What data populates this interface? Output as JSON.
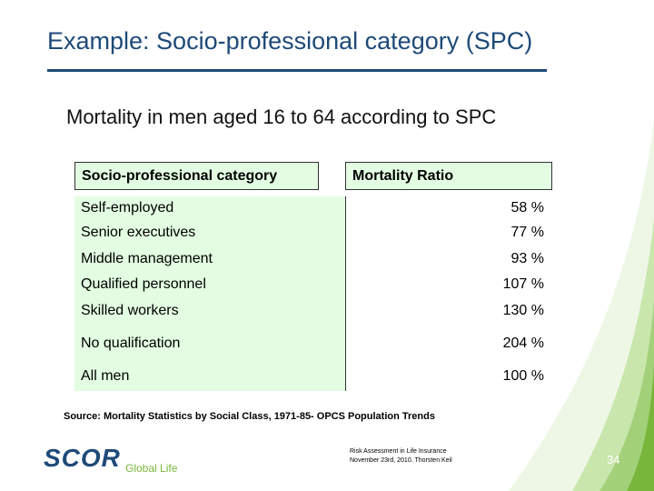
{
  "slide": {
    "title": "Example: Socio-professional category (SPC)",
    "subtitle": "Mortality in men aged 16 to 64 according to SPC"
  },
  "table": {
    "headers": [
      "Socio-professional category",
      "Mortality Ratio"
    ],
    "rows": [
      {
        "category": "Self-employed",
        "ratio": "58 %"
      },
      {
        "category": "Senior executives",
        "ratio": "77 %"
      },
      {
        "category": "Middle management",
        "ratio": "93 %"
      },
      {
        "category": "Qualified personnel",
        "ratio": "107 %"
      },
      {
        "category": "Skilled workers",
        "ratio": "130 %"
      },
      {
        "category": "No qualification",
        "ratio": "204 %"
      },
      {
        "category": "All men",
        "ratio": "100 %"
      }
    ],
    "colors": {
      "header_fill": "#e2fde2",
      "category_fill": "#e2fde2"
    }
  },
  "source": "Source: Mortality Statistics by Social Class, 1971-85- OPCS Population Trends",
  "footer": {
    "logo_text": "SCOR",
    "logo_sub": "Global Life",
    "line1": "Risk Assessment in Life Insurance",
    "line2": "November 23rd, 2010. Thorsten Keil",
    "page_number": "34"
  },
  "colors": {
    "title": "#1e4a78",
    "accent_green": "#78b63b"
  }
}
